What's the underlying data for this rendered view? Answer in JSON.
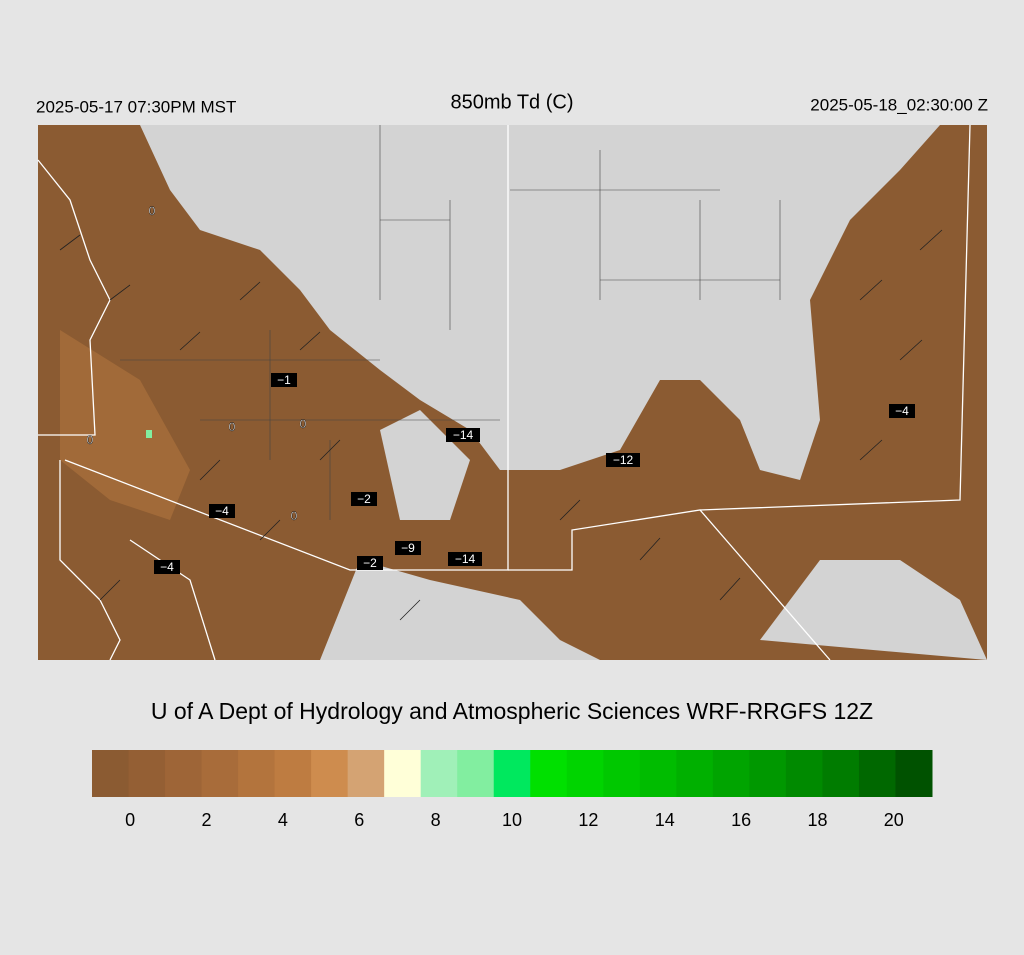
{
  "header": {
    "left": "2025-05-17 07:30PM MST",
    "title": "850mb Td (C)",
    "right": "2025-05-18_02:30:00 Z"
  },
  "map": {
    "labels": [
      "0",
      "−1",
      "0",
      "0",
      "0",
      "−14",
      "−12",
      "−4",
      "−4",
      "0",
      "−2",
      "−9",
      "−14",
      "−2",
      "−4"
    ]
  },
  "footer": "U of A Dept of Hydrology and Atmospheric Sciences WRF-RRGFS 12Z",
  "colorbar": {
    "lim": [
      -1,
      21
    ],
    "colors": [
      "#8b5b32",
      "#945f34",
      "#9e6537",
      "#a86c3a",
      "#b3743d",
      "#be7c41",
      "#ce8c4e",
      "#d4a373",
      "#ffffd8",
      "#a0f0b8",
      "#82eea0",
      "#00e85e",
      "#00e000",
      "#00d400",
      "#00c800",
      "#00bc00",
      "#00b000",
      "#00a400",
      "#009800",
      "#008a00",
      "#007c00",
      "#006800",
      "#005200"
    ],
    "ticks": [
      0,
      2,
      4,
      6,
      8,
      10,
      12,
      14,
      16,
      18,
      20
    ]
  }
}
